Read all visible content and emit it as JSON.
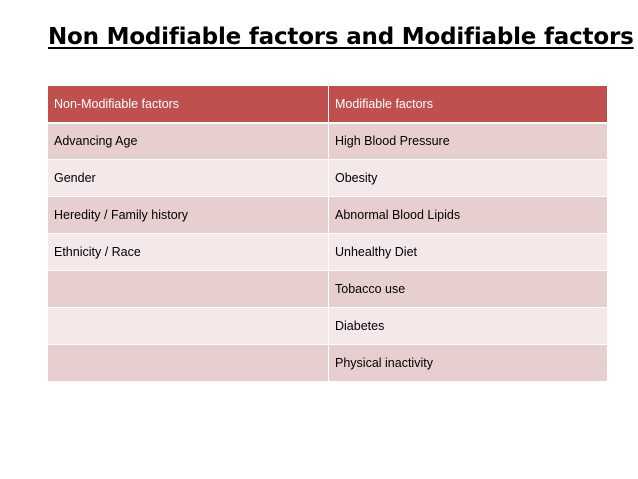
{
  "title": "Non Modifiable factors and Modifiable factors",
  "table": {
    "headers": [
      "Non-Modifiable factors",
      "Modifiable factors"
    ],
    "rows": [
      [
        "Advancing Age",
        "High Blood Pressure"
      ],
      [
        "Gender",
        "Obesity"
      ],
      [
        "Heredity / Family history",
        "Abnormal Blood Lipids"
      ],
      [
        "Ethnicity / Race",
        "Unhealthy Diet"
      ],
      [
        "",
        "Tobacco use"
      ],
      [
        "",
        "Diabetes"
      ],
      [
        "",
        "Physical inactivity"
      ]
    ]
  },
  "colors": {
    "header_bg": "#c0504d",
    "row_dark": "#e8cfcf",
    "row_light": "#f4e8e8"
  }
}
